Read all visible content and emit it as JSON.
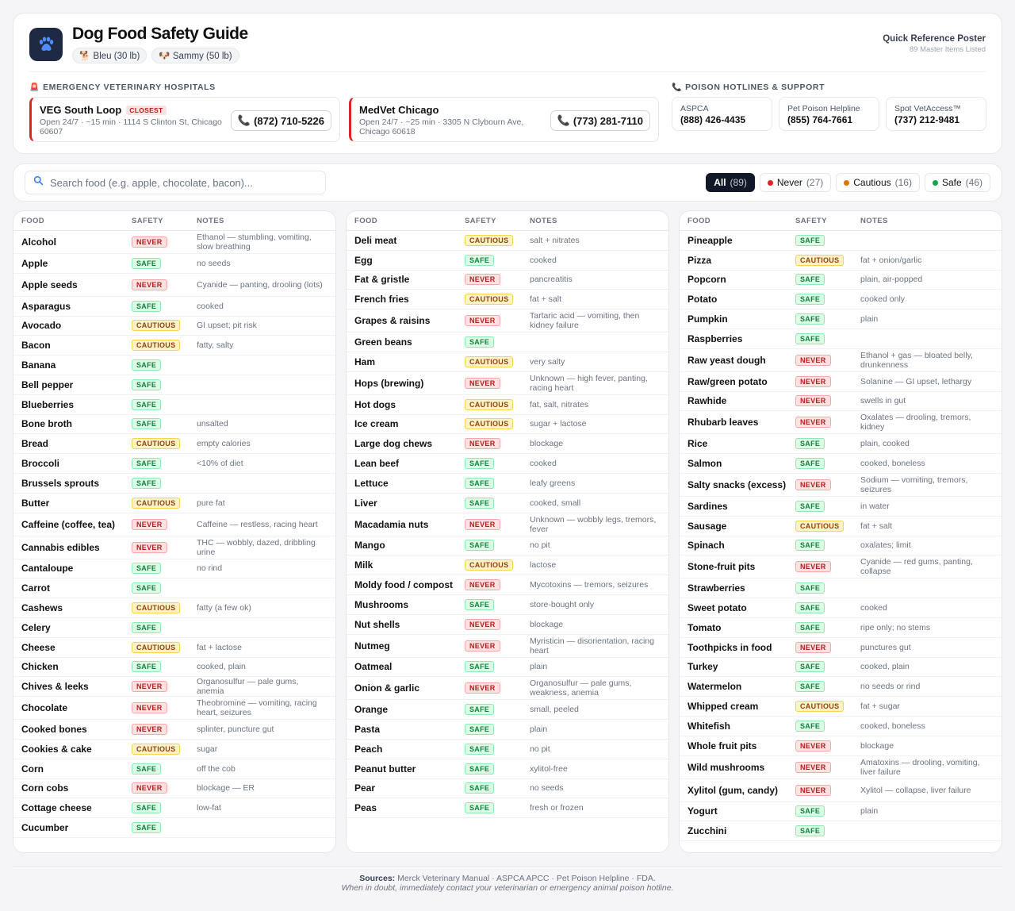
{
  "header": {
    "title": "Dog Food Safety Guide",
    "logo_icon": "paw-icon",
    "pets": [
      {
        "icon": "🐕",
        "label": "Bleu (30 lb)"
      },
      {
        "icon": "🐶",
        "label": "Sammy (50 lb)"
      }
    ],
    "poster_title": "Quick Reference Poster",
    "poster_subtitle": "89 Master Items Listed"
  },
  "emergency": {
    "section_title": "EMERGENCY VETERINARY HOSPITALS",
    "section_icon": "🚨",
    "hospitals": [
      {
        "name": "VEG South Loop",
        "badge": "CLOSEST",
        "address": "Open 24/7 · ~15 min · 1114 S Clinton St, Chicago 60607",
        "phone": "(872) 710-5226"
      },
      {
        "name": "MedVet Chicago",
        "badge": "",
        "address": "Open 24/7 · ~25 min · 3305 N Clybourn Ave, Chicago 60618",
        "phone": "(773) 281-7110"
      }
    ]
  },
  "hotlines": {
    "section_title": "POISON HOTLINES & SUPPORT",
    "section_icon": "📞",
    "items": [
      {
        "name": "ASPCA",
        "number": "(888) 426-4435"
      },
      {
        "name": "Pet Poison Helpline",
        "number": "(855) 764-7661"
      },
      {
        "name": "Spot VetAccess™",
        "number": "(737) 212-9481"
      }
    ]
  },
  "search": {
    "placeholder": "Search food (e.g. apple, chocolate, bacon)...",
    "value": ""
  },
  "filters": [
    {
      "label": "All",
      "count": "(89)",
      "active": true,
      "color": ""
    },
    {
      "label": "Never",
      "count": "(27)",
      "active": false,
      "color": "#dc2626"
    },
    {
      "label": "Cautious",
      "count": "(16)",
      "active": false,
      "color": "#d97706"
    },
    {
      "label": "Safe",
      "count": "(46)",
      "active": false,
      "color": "#16a34a"
    }
  ],
  "table_headers": {
    "food": "FOOD",
    "safety": "SAFETY",
    "notes": "NOTES"
  },
  "columns": [
    [
      {
        "food": "Alcohol",
        "safety": "NEVER",
        "note": "Ethanol — stumbling, vomiting, slow breathing"
      },
      {
        "food": "Apple",
        "safety": "SAFE",
        "note": "no seeds"
      },
      {
        "food": "Apple seeds",
        "safety": "NEVER",
        "note": "Cyanide — panting, drooling (lots)"
      },
      {
        "food": "Asparagus",
        "safety": "SAFE",
        "note": "cooked"
      },
      {
        "food": "Avocado",
        "safety": "CAUTIOUS",
        "note": "GI upset; pit risk"
      },
      {
        "food": "Bacon",
        "safety": "CAUTIOUS",
        "note": "fatty, salty"
      },
      {
        "food": "Banana",
        "safety": "SAFE",
        "note": ""
      },
      {
        "food": "Bell pepper",
        "safety": "SAFE",
        "note": ""
      },
      {
        "food": "Blueberries",
        "safety": "SAFE",
        "note": ""
      },
      {
        "food": "Bone broth",
        "safety": "SAFE",
        "note": "unsalted"
      },
      {
        "food": "Bread",
        "safety": "CAUTIOUS",
        "note": "empty calories"
      },
      {
        "food": "Broccoli",
        "safety": "SAFE",
        "note": "<10% of diet"
      },
      {
        "food": "Brussels sprouts",
        "safety": "SAFE",
        "note": ""
      },
      {
        "food": "Butter",
        "safety": "CAUTIOUS",
        "note": "pure fat"
      },
      {
        "food": "Caffeine (coffee, tea)",
        "safety": "NEVER",
        "note": "Caffeine — restless, racing heart"
      },
      {
        "food": "Cannabis edibles",
        "safety": "NEVER",
        "note": "THC — wobbly, dazed, dribbling urine"
      },
      {
        "food": "Cantaloupe",
        "safety": "SAFE",
        "note": "no rind"
      },
      {
        "food": "Carrot",
        "safety": "SAFE",
        "note": ""
      },
      {
        "food": "Cashews",
        "safety": "CAUTIOUS",
        "note": "fatty (a few ok)"
      },
      {
        "food": "Celery",
        "safety": "SAFE",
        "note": ""
      },
      {
        "food": "Cheese",
        "safety": "CAUTIOUS",
        "note": "fat + lactose"
      },
      {
        "food": "Chicken",
        "safety": "SAFE",
        "note": "cooked, plain"
      },
      {
        "food": "Chives & leeks",
        "safety": "NEVER",
        "note": "Organosulfur — pale gums, anemia"
      },
      {
        "food": "Chocolate",
        "safety": "NEVER",
        "note": "Theobromine — vomiting, racing heart, seizures"
      },
      {
        "food": "Cooked bones",
        "safety": "NEVER",
        "note": "splinter, puncture gut"
      },
      {
        "food": "Cookies & cake",
        "safety": "CAUTIOUS",
        "note": "sugar"
      },
      {
        "food": "Corn",
        "safety": "SAFE",
        "note": "off the cob"
      },
      {
        "food": "Corn cobs",
        "safety": "NEVER",
        "note": "blockage — ER"
      },
      {
        "food": "Cottage cheese",
        "safety": "SAFE",
        "note": "low-fat"
      },
      {
        "food": "Cucumber",
        "safety": "SAFE",
        "note": ""
      }
    ],
    [
      {
        "food": "Deli meat",
        "safety": "CAUTIOUS",
        "note": "salt + nitrates"
      },
      {
        "food": "Egg",
        "safety": "SAFE",
        "note": "cooked"
      },
      {
        "food": "Fat & gristle",
        "safety": "NEVER",
        "note": "pancreatitis"
      },
      {
        "food": "French fries",
        "safety": "CAUTIOUS",
        "note": "fat + salt"
      },
      {
        "food": "Grapes & raisins",
        "safety": "NEVER",
        "note": "Tartaric acid — vomiting, then kidney failure"
      },
      {
        "food": "Green beans",
        "safety": "SAFE",
        "note": ""
      },
      {
        "food": "Ham",
        "safety": "CAUTIOUS",
        "note": "very salty"
      },
      {
        "food": "Hops (brewing)",
        "safety": "NEVER",
        "note": "Unknown — high fever, panting, racing heart"
      },
      {
        "food": "Hot dogs",
        "safety": "CAUTIOUS",
        "note": "fat, salt, nitrates"
      },
      {
        "food": "Ice cream",
        "safety": "CAUTIOUS",
        "note": "sugar + lactose"
      },
      {
        "food": "Large dog chews",
        "safety": "NEVER",
        "note": "blockage"
      },
      {
        "food": "Lean beef",
        "safety": "SAFE",
        "note": "cooked"
      },
      {
        "food": "Lettuce",
        "safety": "SAFE",
        "note": "leafy greens"
      },
      {
        "food": "Liver",
        "safety": "SAFE",
        "note": "cooked, small"
      },
      {
        "food": "Macadamia nuts",
        "safety": "NEVER",
        "note": "Unknown — wobbly legs, tremors, fever"
      },
      {
        "food": "Mango",
        "safety": "SAFE",
        "note": "no pit"
      },
      {
        "food": "Milk",
        "safety": "CAUTIOUS",
        "note": "lactose"
      },
      {
        "food": "Moldy food / compost",
        "safety": "NEVER",
        "note": "Mycotoxins — tremors, seizures"
      },
      {
        "food": "Mushrooms",
        "safety": "SAFE",
        "note": "store-bought only"
      },
      {
        "food": "Nut shells",
        "safety": "NEVER",
        "note": "blockage"
      },
      {
        "food": "Nutmeg",
        "safety": "NEVER",
        "note": "Myristicin — disorientation, racing heart"
      },
      {
        "food": "Oatmeal",
        "safety": "SAFE",
        "note": "plain"
      },
      {
        "food": "Onion & garlic",
        "safety": "NEVER",
        "note": "Organosulfur — pale gums, weakness, anemia"
      },
      {
        "food": "Orange",
        "safety": "SAFE",
        "note": "small, peeled"
      },
      {
        "food": "Pasta",
        "safety": "SAFE",
        "note": "plain"
      },
      {
        "food": "Peach",
        "safety": "SAFE",
        "note": "no pit"
      },
      {
        "food": "Peanut butter",
        "safety": "SAFE",
        "note": "xylitol-free"
      },
      {
        "food": "Pear",
        "safety": "SAFE",
        "note": "no seeds"
      },
      {
        "food": "Peas",
        "safety": "SAFE",
        "note": "fresh or frozen"
      }
    ],
    [
      {
        "food": "Pineapple",
        "safety": "SAFE",
        "note": ""
      },
      {
        "food": "Pizza",
        "safety": "CAUTIOUS",
        "note": "fat + onion/garlic"
      },
      {
        "food": "Popcorn",
        "safety": "SAFE",
        "note": "plain, air-popped"
      },
      {
        "food": "Potato",
        "safety": "SAFE",
        "note": "cooked only"
      },
      {
        "food": "Pumpkin",
        "safety": "SAFE",
        "note": "plain"
      },
      {
        "food": "Raspberries",
        "safety": "SAFE",
        "note": ""
      },
      {
        "food": "Raw yeast dough",
        "safety": "NEVER",
        "note": "Ethanol + gas — bloated belly, drunkenness"
      },
      {
        "food": "Raw/green potato",
        "safety": "NEVER",
        "note": "Solanine — GI upset, lethargy"
      },
      {
        "food": "Rawhide",
        "safety": "NEVER",
        "note": "swells in gut"
      },
      {
        "food": "Rhubarb leaves",
        "safety": "NEVER",
        "note": "Oxalates — drooling, tremors, kidney"
      },
      {
        "food": "Rice",
        "safety": "SAFE",
        "note": "plain, cooked"
      },
      {
        "food": "Salmon",
        "safety": "SAFE",
        "note": "cooked, boneless"
      },
      {
        "food": "Salty snacks (excess)",
        "safety": "NEVER",
        "note": "Sodium — vomiting, tremors, seizures"
      },
      {
        "food": "Sardines",
        "safety": "SAFE",
        "note": "in water"
      },
      {
        "food": "Sausage",
        "safety": "CAUTIOUS",
        "note": "fat + salt"
      },
      {
        "food": "Spinach",
        "safety": "SAFE",
        "note": "oxalates; limit"
      },
      {
        "food": "Stone-fruit pits",
        "safety": "NEVER",
        "note": "Cyanide — red gums, panting, collapse"
      },
      {
        "food": "Strawberries",
        "safety": "SAFE",
        "note": ""
      },
      {
        "food": "Sweet potato",
        "safety": "SAFE",
        "note": "cooked"
      },
      {
        "food": "Tomato",
        "safety": "SAFE",
        "note": "ripe only; no stems"
      },
      {
        "food": "Toothpicks in food",
        "safety": "NEVER",
        "note": "punctures gut"
      },
      {
        "food": "Turkey",
        "safety": "SAFE",
        "note": "cooked, plain"
      },
      {
        "food": "Watermelon",
        "safety": "SAFE",
        "note": "no seeds or rind"
      },
      {
        "food": "Whipped cream",
        "safety": "CAUTIOUS",
        "note": "fat + sugar"
      },
      {
        "food": "Whitefish",
        "safety": "SAFE",
        "note": "cooked, boneless"
      },
      {
        "food": "Whole fruit pits",
        "safety": "NEVER",
        "note": "blockage"
      },
      {
        "food": "Wild mushrooms",
        "safety": "NEVER",
        "note": "Amatoxins — drooling, vomiting, liver failure"
      },
      {
        "food": "Xylitol (gum, candy)",
        "safety": "NEVER",
        "note": "Xylitol — collapse, liver failure"
      },
      {
        "food": "Yogurt",
        "safety": "SAFE",
        "note": "plain"
      },
      {
        "food": "Zucchini",
        "safety": "SAFE",
        "note": ""
      }
    ]
  ],
  "footer": {
    "sources_label": "Sources:",
    "sources": "Merck Veterinary Manual · ASPCA APCC · Pet Poison Helpline · FDA.",
    "disclaimer": "When in doubt, immediately contact your veterinarian or emergency animal poison hotline."
  }
}
